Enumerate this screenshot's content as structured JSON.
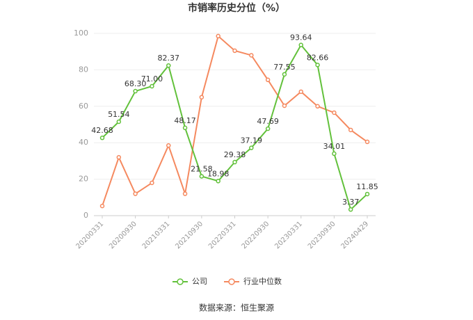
{
  "chart_data": {
    "type": "line",
    "title": "市销率历史分位（%）",
    "categories": [
      "20200331",
      null,
      "20200930",
      null,
      "20210331",
      null,
      "20210930",
      null,
      "20220331",
      null,
      "20220930",
      null,
      "20230331",
      null,
      "20230930",
      null,
      "20240429"
    ],
    "series": [
      {
        "name": "公司",
        "color": "#62c13b",
        "values": [
          42.68,
          51.54,
          68.3,
          71.0,
          82.37,
          48.17,
          21.58,
          18.98,
          29.38,
          37.19,
          47.69,
          77.55,
          93.64,
          82.66,
          34.01,
          3.37,
          11.85
        ],
        "value_labels": [
          "42.68",
          "51.54",
          "68.30",
          "71.00",
          "82.37",
          "48.17",
          "21.58",
          "18.98",
          "29.38",
          "37.19",
          "47.69",
          "77.55",
          "93.64",
          "82.66",
          "34.01",
          "3.37",
          "11.85"
        ]
      },
      {
        "name": "行业中位数",
        "color": "#f5895f",
        "values": [
          5.3,
          32,
          12,
          18,
          38.5,
          12,
          65,
          98.5,
          90.5,
          88,
          74.5,
          60.3,
          68,
          60,
          56.5,
          47,
          40.5
        ]
      }
    ],
    "ylim": [
      0,
      100
    ],
    "yticks": [
      0,
      20,
      40,
      60,
      80,
      100
    ],
    "grid": true,
    "legend": "bottom",
    "source": "数据来源：恒生聚源"
  }
}
